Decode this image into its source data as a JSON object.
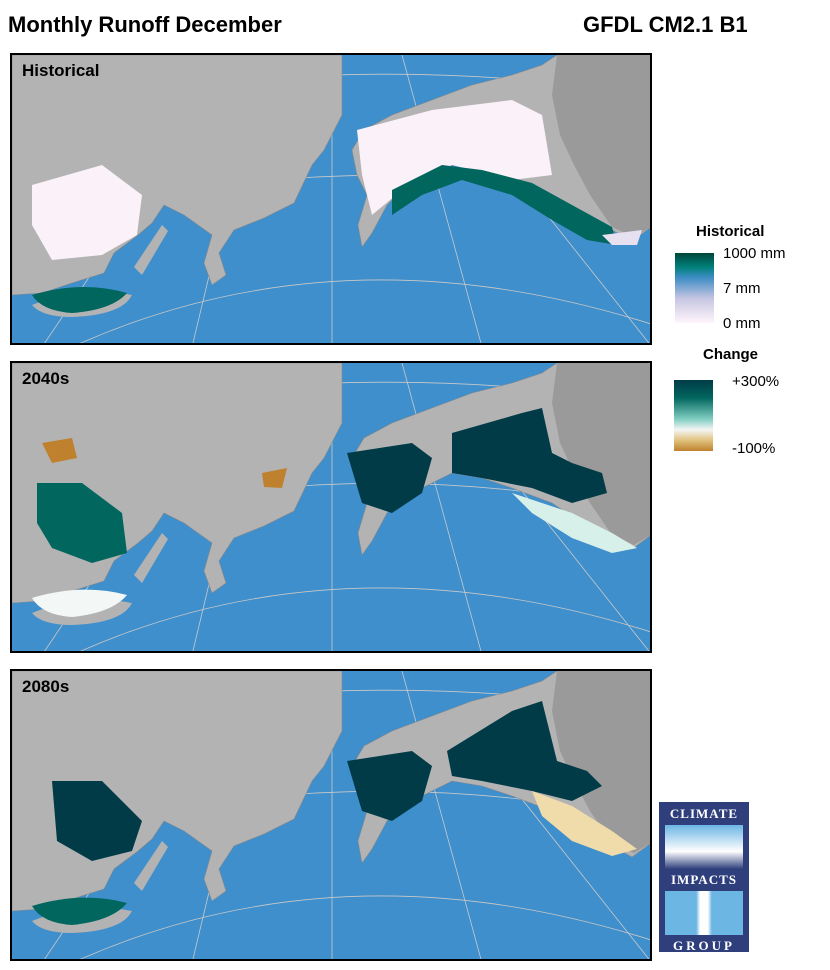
{
  "header": {
    "title": "Monthly Runoff December",
    "model": "GFDL CM2.1 B1"
  },
  "panels": [
    {
      "label": "Historical"
    },
    {
      "label": "2040s"
    },
    {
      "label": "2080s"
    }
  ],
  "legend": {
    "historical": {
      "title": "Historical",
      "ticks": [
        "1000 mm",
        "7 mm",
        "0 mm"
      ],
      "colors": [
        "#00463a",
        "#00807a",
        "#3d8cc4",
        "#c7c6e2",
        "#fff5fb"
      ]
    },
    "change": {
      "title": "Change",
      "ticks": [
        "+300%",
        "-100%"
      ],
      "colors": [
        "#003b47",
        "#01665e",
        "#80cdc1",
        "#f5f5f5",
        "#dfc27d",
        "#bf812d"
      ]
    }
  },
  "colors": {
    "ocean": "#3f8fcc",
    "land": "#b3b3b3",
    "canada": "#9a9a9a"
  },
  "logo": {
    "line1": "CLIMATE",
    "line2": "IMPACTS",
    "line3": "GROUP"
  }
}
